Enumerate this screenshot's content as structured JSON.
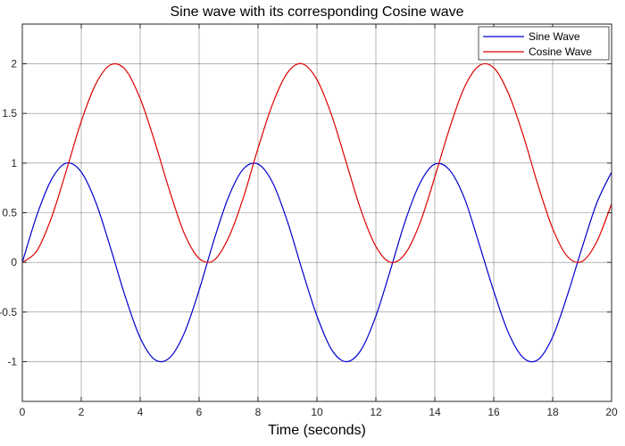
{
  "chart_data": {
    "type": "line",
    "title": "Sine wave with its corresponding Cosine wave",
    "xlabel": "Time (seconds)",
    "ylabel": "",
    "xlim": [
      0,
      20
    ],
    "ylim": [
      -1.4,
      2.4
    ],
    "xticks": [
      0,
      2,
      4,
      6,
      8,
      10,
      12,
      14,
      16,
      18,
      20
    ],
    "yticks": [
      -1,
      -0.5,
      0,
      0.5,
      1,
      1.5,
      2
    ],
    "xtick_labels": [
      "0",
      "2",
      "4",
      "6",
      "8",
      "10",
      "12",
      "14",
      "16",
      "18",
      "20"
    ],
    "ytick_labels": [
      "-1",
      "-0.5",
      "0",
      "0.5",
      "1",
      "1.5",
      "2"
    ],
    "grid": true,
    "legend_position": "top-right",
    "series": [
      {
        "name": "Sine Wave",
        "color": "#0000cc",
        "x": [
          0,
          0.5,
          1,
          1.5,
          2,
          2.5,
          3,
          3.5,
          4,
          4.5,
          5,
          5.5,
          6,
          6.5,
          7,
          7.5,
          8,
          8.5,
          9,
          9.5,
          10,
          10.5,
          11,
          11.5,
          12,
          12.5,
          13,
          13.5,
          14,
          14.5,
          15,
          15.5,
          16,
          16.5,
          17,
          17.5,
          18,
          18.5,
          19,
          19.5,
          20
        ],
        "y": [
          0,
          0.48,
          0.84,
          1.0,
          0.91,
          0.6,
          0.14,
          -0.35,
          -0.76,
          -0.98,
          -0.96,
          -0.71,
          -0.28,
          0.22,
          0.66,
          0.94,
          0.99,
          0.8,
          0.41,
          -0.08,
          -0.54,
          -0.88,
          -1.0,
          -0.88,
          -0.54,
          -0.07,
          0.42,
          0.8,
          0.99,
          0.93,
          0.65,
          0.19,
          -0.29,
          -0.71,
          -0.96,
          -0.98,
          -0.75,
          -0.33,
          0.15,
          0.6,
          0.91
        ]
      },
      {
        "name": "Cosine Wave",
        "color": "#dd0000",
        "x": [
          0,
          0.5,
          1,
          1.5,
          2,
          2.5,
          3,
          3.5,
          4,
          4.5,
          5,
          5.5,
          6,
          6.5,
          7,
          7.5,
          8,
          8.5,
          9,
          9.5,
          10,
          10.5,
          11,
          11.5,
          12,
          12.5,
          13,
          13.5,
          14,
          14.5,
          15,
          15.5,
          16,
          16.5,
          17,
          17.5,
          18,
          18.5,
          19,
          19.5,
          20
        ],
        "y": [
          0,
          0.12,
          0.46,
          0.93,
          1.42,
          1.8,
          1.99,
          1.94,
          1.65,
          1.21,
          0.72,
          0.29,
          0.04,
          0.02,
          0.25,
          0.65,
          1.15,
          1.6,
          1.91,
          2.0,
          1.84,
          1.48,
          1.0,
          0.52,
          0.16,
          0.0,
          0.09,
          0.4,
          0.86,
          1.35,
          1.76,
          1.98,
          1.96,
          1.7,
          1.28,
          0.78,
          0.34,
          0.06,
          0.01,
          0.21,
          0.59
        ]
      }
    ]
  }
}
